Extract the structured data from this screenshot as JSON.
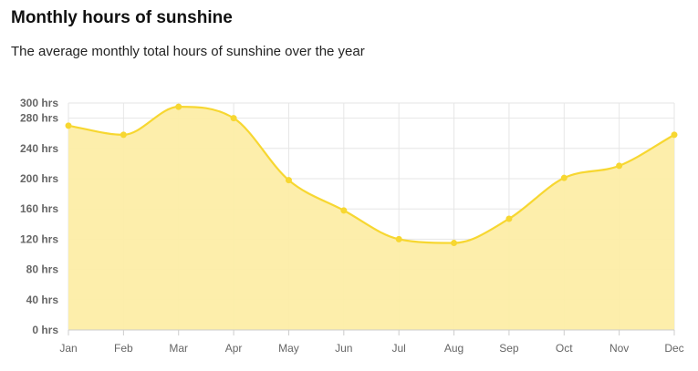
{
  "header": {
    "title": "Monthly hours of sunshine",
    "subtitle": "The average monthly total hours of sunshine over the year"
  },
  "colors": {
    "line": "#f7d731",
    "fill": "#fdeda6",
    "grid": "#e6e6e6"
  },
  "chart_data": {
    "type": "area",
    "title": "Monthly hours of sunshine",
    "subtitle": "The average monthly total hours of sunshine over the year",
    "categories": [
      "Jan",
      "Feb",
      "Mar",
      "Apr",
      "May",
      "Jun",
      "Jul",
      "Aug",
      "Sep",
      "Oct",
      "Nov",
      "Dec"
    ],
    "values": [
      270,
      258,
      295,
      280,
      198,
      158,
      120,
      115,
      147,
      201,
      217,
      258
    ],
    "y_ticks": [
      0,
      40,
      80,
      120,
      160,
      200,
      240,
      280,
      300
    ],
    "y_tick_labels": [
      "0 hrs",
      "40 hrs",
      "80 hrs",
      "120 hrs",
      "160 hrs",
      "200 hrs",
      "240 hrs",
      "280 hrs",
      "300 hrs"
    ],
    "ylim": [
      0,
      300
    ],
    "grid": true,
    "legend": "none",
    "smooth": true
  }
}
